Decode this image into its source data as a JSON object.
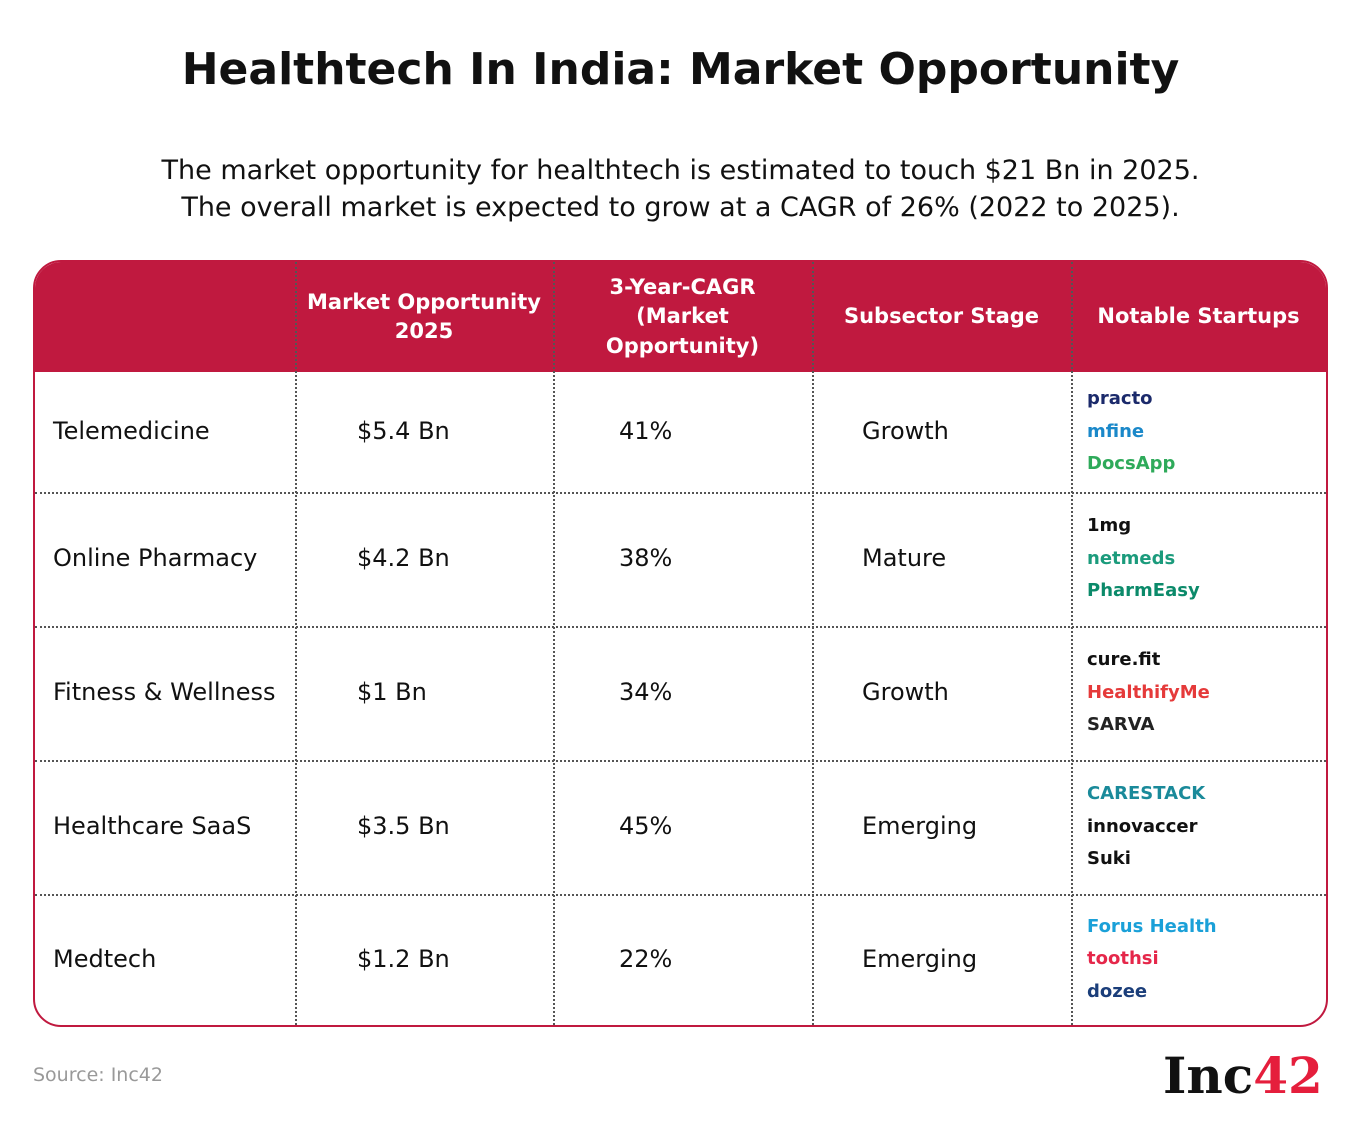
{
  "header": {
    "title": "Healthtech In India: Market Opportunity",
    "subtitle": [
      "The market opportunity for healthtech is estimated to touch $21 Bn in 2025.",
      "The overall market is expected to grow at a CAGR of 26% (2022 to 2025)."
    ]
  },
  "table": {
    "columns": [
      "",
      "Market Opportunity 2025",
      "3-Year-CAGR (Market Opportunity)",
      "Subsector Stage",
      "Notable Startups"
    ],
    "rows": [
      [
        "Telemedicine",
        "$5.4 Bn",
        "41%",
        "Growth",
        [
          "practo",
          "mfine",
          "DocsApp"
        ]
      ],
      [
        "Online Pharmacy",
        "$4.2 Bn",
        "38%",
        "Mature",
        [
          "1mg",
          "netmeds",
          "PharmEasy"
        ]
      ],
      [
        "Fitness & Wellness",
        "$1 Bn",
        "34%",
        "Growth",
        [
          "cure.fit",
          "HealthifyMe",
          "SARVA"
        ]
      ],
      [
        "Healthcare SaaS",
        "$3.5 Bn",
        "45%",
        "Emerging",
        [
          "CARESTACK",
          "innovaccer",
          "Suki"
        ]
      ],
      [
        "Medtech",
        "$1.2 Bn",
        "22%",
        "Emerging",
        [
          "Forus Health",
          "toothsi",
          "dozee"
        ]
      ]
    ]
  },
  "footer": {
    "source": "Source: Inc42",
    "logo": {
      "text": "Inc",
      "accent": "42"
    }
  }
}
